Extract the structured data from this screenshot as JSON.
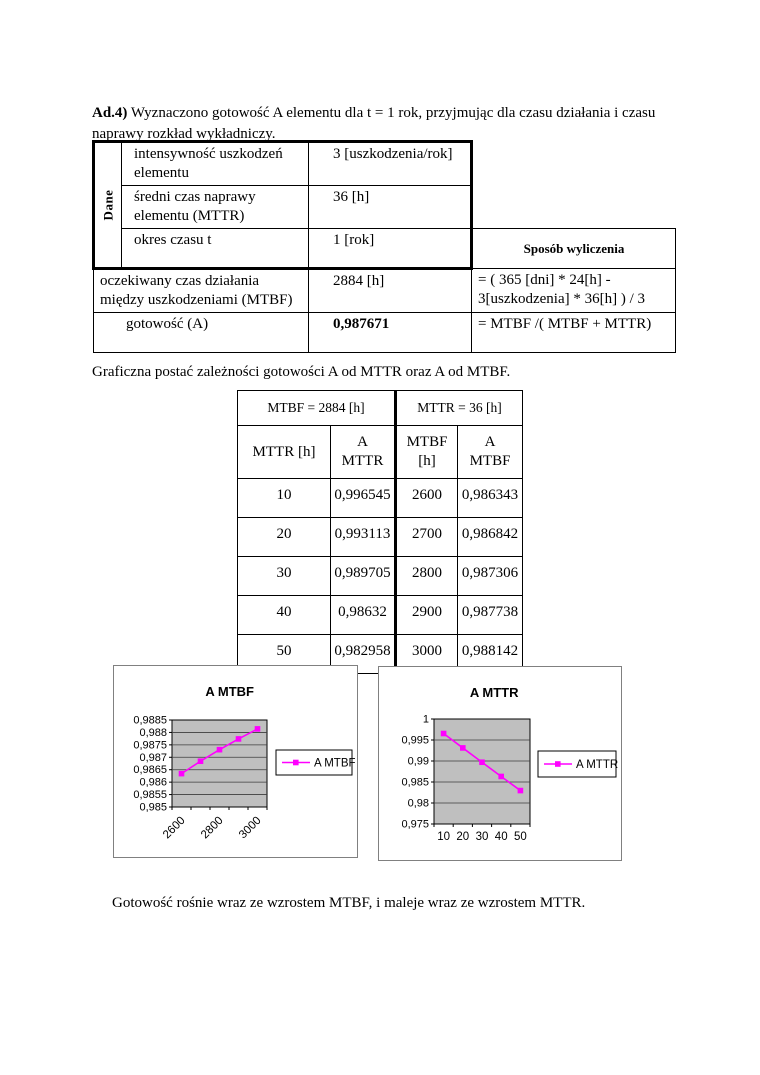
{
  "page": {
    "intro_bold": "Ad.4)",
    "intro_rest": " Wyznaczono gotowość A elementu dla t = 1 rok, przyjmując dla czasu działania i czasu naprawy rozkład wykładniczy.",
    "graph_caption": "Graficzna postać zależności gotowości A od MTTR oraz A od MTBF.",
    "conclusion": "Gotowość rośnie wraz ze wzrostem MTBF, i maleje wraz ze wzrostem MTTR."
  },
  "data_table": {
    "group_label": "Dane",
    "rows": [
      {
        "label": "intensywność uszkodzeń elementu",
        "value": "3 [uszkodzenia/rok]"
      },
      {
        "label": "średni czas naprawy elementu (MTTR)",
        "value": "36 [h]"
      },
      {
        "label": "okres czasu t",
        "value": "1 [rok]"
      }
    ],
    "method_header": "Sposób wyliczenia",
    "mtbf_label": "oczekiwany czas działania między uszkodzeniami (MTBF)",
    "mtbf_value": "2884 [h]",
    "mtbf_formula": "= ( 365 [dni] * 24[h] - 3[uszkodzenia] * 36[h] ) / 3",
    "availability_label": "gotowość (A)",
    "availability_value": "0,987671",
    "availability_formula": "= MTBF /( MTBF + MTTR)"
  },
  "value_table": {
    "group_headers": [
      "MTBF = 2884 [h]",
      "MTTR = 36 [h]"
    ],
    "col_headers": [
      "MTTR [h]",
      "A\nMTTR",
      "MTBF\n[h]",
      "A\nMTBF"
    ],
    "rows": [
      [
        "10",
        "0,996545",
        "2600",
        "0,986343"
      ],
      [
        "20",
        "0,993113",
        "2700",
        "0,986842"
      ],
      [
        "30",
        "0,989705",
        "2800",
        "0,987306"
      ],
      [
        "40",
        "0,98632",
        "2900",
        "0,987738"
      ],
      [
        "50",
        "0,982958",
        "3000",
        "0,988142"
      ]
    ]
  },
  "chart_data": [
    {
      "type": "line",
      "title": "A MTBF",
      "categories": [
        2600,
        2700,
        2800,
        2900,
        3000
      ],
      "x_tick_labels": [
        "2600",
        "2800",
        "3000"
      ],
      "x_label_indices": [
        0,
        2,
        4
      ],
      "series": [
        {
          "name": "A MTBF",
          "values": [
            0.986343,
            0.986842,
            0.987306,
            0.987738,
            0.988142
          ]
        }
      ],
      "ylim": [
        0.985,
        0.9885
      ],
      "y_step": 0.0005,
      "y_tick_labels": [
        "0,9885",
        "0,988",
        "0,9875",
        "0,987",
        "0,9865",
        "0,986",
        "0,9855",
        "0,985"
      ],
      "legend": "A MTBF",
      "legend_position": "right",
      "grid": true,
      "line_color": "#ff00ff",
      "plot_bg": "#bfbfbf"
    },
    {
      "type": "line",
      "title": "A MTTR",
      "categories": [
        10,
        20,
        30,
        40,
        50
      ],
      "x_tick_labels": [
        "10",
        "20",
        "30",
        "40",
        "50"
      ],
      "x_label_indices": [
        0,
        1,
        2,
        3,
        4
      ],
      "series": [
        {
          "name": "A MTTR",
          "values": [
            0.996545,
            0.993113,
            0.989705,
            0.98632,
            0.982958
          ]
        }
      ],
      "ylim": [
        0.975,
        1.0
      ],
      "y_step": 0.005,
      "y_tick_labels": [
        "1",
        "0,995",
        "0,99",
        "0,985",
        "0,98",
        "0,975"
      ],
      "legend": "A MTTR",
      "legend_position": "right",
      "grid": true,
      "line_color": "#ff00ff",
      "plot_bg": "#bfbfbf"
    }
  ]
}
